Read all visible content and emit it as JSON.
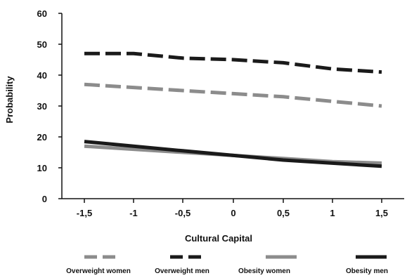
{
  "chart_data": {
    "type": "line",
    "xlabel": "Cultural Capital",
    "ylabel": "Probability",
    "x": [
      -1.5,
      -1,
      -0.5,
      0,
      0.5,
      1,
      1.5
    ],
    "x_tick_labels": [
      "-1,5",
      "-1",
      "-0,5",
      "0",
      "0,5",
      "1",
      "1,5"
    ],
    "ylim": [
      0,
      60
    ],
    "y_ticks": [
      0,
      10,
      20,
      30,
      40,
      50,
      60
    ],
    "grid": false,
    "legend_position": "bottom",
    "series": [
      {
        "name": "Overweight women",
        "values": [
          37,
          36,
          35,
          34,
          33,
          31.5,
          30
        ],
        "color": "#8c8c8c",
        "dash": "dashed"
      },
      {
        "name": "Overweight men",
        "values": [
          47,
          47,
          45.5,
          45,
          44,
          42,
          41
        ],
        "color": "#1a1a1a",
        "dash": "dashed"
      },
      {
        "name": "Obesity women",
        "values": [
          17,
          16,
          15,
          14,
          13,
          12,
          11.5
        ],
        "color": "#8c8c8c",
        "dash": "solid"
      },
      {
        "name": "Obesity men",
        "values": [
          18.5,
          17,
          15.5,
          14,
          12.5,
          11.5,
          10.5
        ],
        "color": "#1a1a1a",
        "dash": "solid"
      }
    ]
  }
}
